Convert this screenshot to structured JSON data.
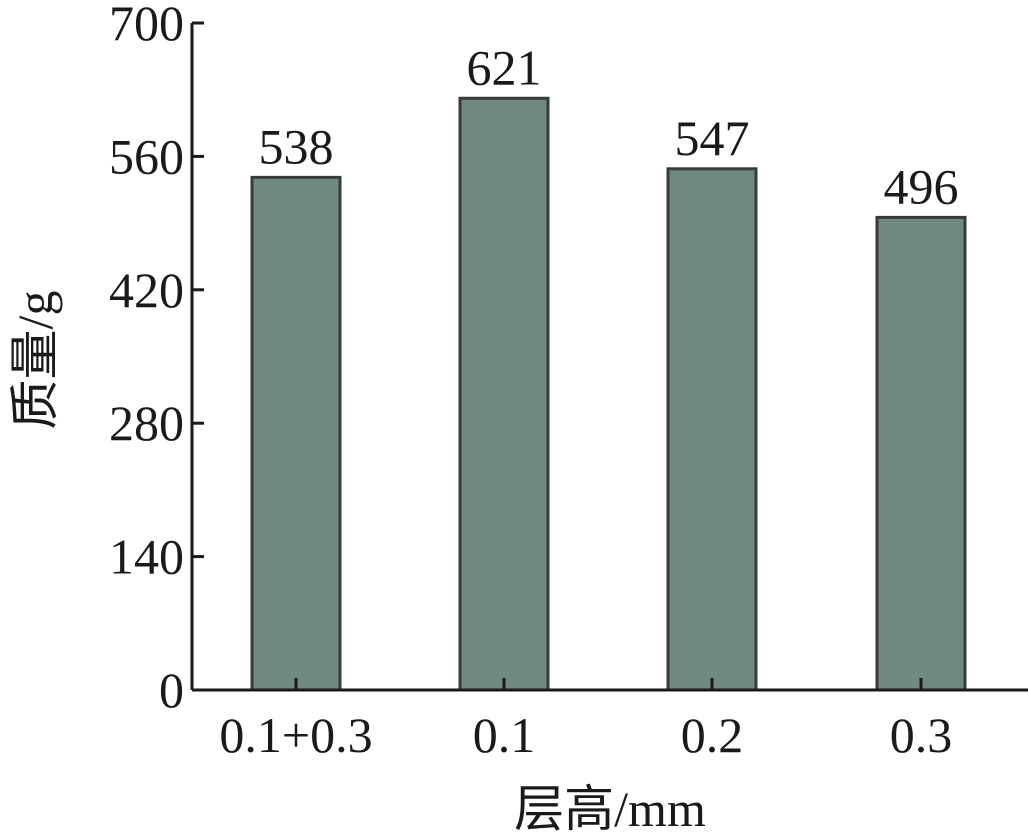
{
  "chart_data": {
    "type": "bar",
    "categories": [
      "0.1+0.3",
      "0.1",
      "0.2",
      "0.3"
    ],
    "values": [
      538,
      621,
      547,
      496
    ],
    "data_labels": [
      "538",
      "621",
      "547",
      "496"
    ],
    "xlabel": "层高/mm",
    "ylabel": "质量/g",
    "ylim": [
      0,
      700
    ],
    "yticks": [
      0,
      140,
      280,
      420,
      560,
      700
    ],
    "grid": false,
    "bar_color": "#6e8a82",
    "bar_edge_color": "#3a3a3a"
  }
}
